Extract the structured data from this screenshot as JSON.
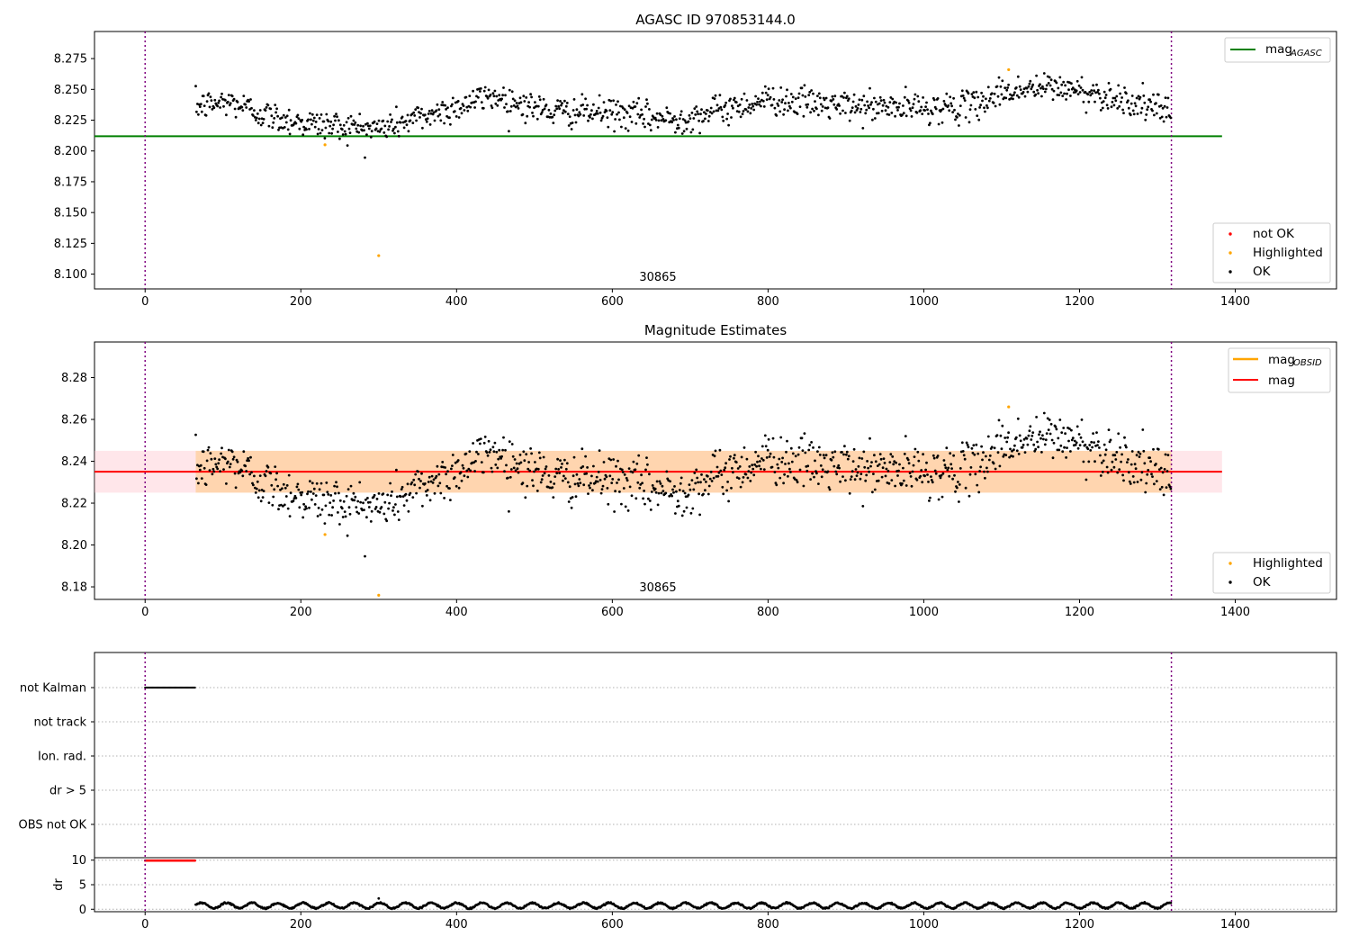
{
  "figure": {
    "panels": [
      {
        "id": "agasc",
        "title": "AGASC ID 970853144.0",
        "annotation": "30865"
      },
      {
        "id": "estimates",
        "title": "Magnitude Estimates",
        "annotation": "30865"
      },
      {
        "id": "flags",
        "title": ""
      }
    ]
  },
  "chart_data": [
    {
      "type": "scatter",
      "title": "AGASC ID 970853144.0",
      "xlabel": "",
      "ylabel": "",
      "xlim": [
        -65,
        1530
      ],
      "ylim": [
        8.088,
        8.297
      ],
      "x_ticks": [
        "0",
        "200",
        "400",
        "600",
        "800",
        "1000",
        "1200",
        "1400"
      ],
      "y_ticks": [
        "8.100",
        "8.125",
        "8.150",
        "8.175",
        "8.200",
        "8.225",
        "8.250",
        "8.275"
      ],
      "x_range_points": [
        65,
        1318
      ],
      "vlines": [
        0,
        1318
      ],
      "hlines": [
        {
          "name_main": "mag",
          "name_sub": "AGASC",
          "y": 8.212,
          "x_range": [
            -65,
            1383
          ],
          "color": "#008000"
        }
      ],
      "series": [
        {
          "name": "not OK",
          "color": "#ff0000",
          "points": []
        },
        {
          "name": "Highlighted",
          "color": "#ffa500",
          "points": [
            [
              231,
              8.205
            ],
            [
              300,
              8.115
            ],
            [
              1109,
              8.266
            ]
          ]
        },
        {
          "name": "OK",
          "color": "#000000",
          "trend": [
            [
              65,
              8.236
            ],
            [
              110,
              8.24
            ],
            [
              160,
              8.228
            ],
            [
              215,
              8.222
            ],
            [
              300,
              8.218
            ],
            [
              380,
              8.232
            ],
            [
              445,
              8.245
            ],
            [
              520,
              8.232
            ],
            [
              600,
              8.231
            ],
            [
              680,
              8.225
            ],
            [
              800,
              8.242
            ],
            [
              900,
              8.236
            ],
            [
              1000,
              8.235
            ],
            [
              1060,
              8.236
            ],
            [
              1100,
              8.248
            ],
            [
              1170,
              8.252
            ],
            [
              1250,
              8.243
            ],
            [
              1318,
              8.23
            ]
          ],
          "scatter": 0.006
        }
      ],
      "legend": [
        {
          "position": "upper-right",
          "entries": [
            "mag_AGASC"
          ]
        },
        {
          "position": "lower-right",
          "entries": [
            "not OK",
            "Highlighted",
            "OK"
          ]
        }
      ],
      "annotation": {
        "text": "30865",
        "x": 659
      }
    },
    {
      "type": "scatter",
      "title": "Magnitude Estimates",
      "xlabel": "",
      "ylabel": "",
      "xlim": [
        -65,
        1530
      ],
      "ylim": [
        8.174,
        8.297
      ],
      "x_ticks": [
        "0",
        "200",
        "400",
        "600",
        "800",
        "1000",
        "1200",
        "1400"
      ],
      "y_ticks": [
        "8.18",
        "8.20",
        "8.22",
        "8.24",
        "8.26",
        "8.28"
      ],
      "vlines": [
        0,
        1318
      ],
      "bands": [
        {
          "y": [
            8.225,
            8.245
          ],
          "x_range": [
            -65,
            1383
          ],
          "color": "#ffc0cb",
          "opacity": 0.4
        },
        {
          "y": [
            8.225,
            8.245
          ],
          "x_range": [
            65,
            1318
          ],
          "color": "#ffa500",
          "opacity": 0.25
        }
      ],
      "hlines": [
        {
          "name_main": "mag",
          "name_sub": "",
          "y": 8.235,
          "x_range": [
            -65,
            1383
          ],
          "color": "#ff0000"
        }
      ],
      "series": [
        {
          "name": "Highlighted",
          "color": "#ffa500",
          "points": [
            [
              231,
              8.205
            ],
            [
              300,
              8.176
            ],
            [
              1109,
              8.266
            ]
          ]
        },
        {
          "name": "OK",
          "color": "#000000",
          "trend": [
            [
              65,
              8.236
            ],
            [
              110,
              8.24
            ],
            [
              160,
              8.228
            ],
            [
              215,
              8.222
            ],
            [
              300,
              8.218
            ],
            [
              380,
              8.232
            ],
            [
              445,
              8.245
            ],
            [
              520,
              8.232
            ],
            [
              600,
              8.231
            ],
            [
              680,
              8.225
            ],
            [
              800,
              8.242
            ],
            [
              900,
              8.236
            ],
            [
              1000,
              8.235
            ],
            [
              1060,
              8.236
            ],
            [
              1100,
              8.248
            ],
            [
              1170,
              8.252
            ],
            [
              1250,
              8.243
            ],
            [
              1318,
              8.23
            ]
          ],
          "scatter": 0.006
        }
      ],
      "legend": [
        {
          "position": "upper-right",
          "entries": [
            "mag_OBSID",
            "mag"
          ]
        },
        {
          "position": "lower-right",
          "entries": [
            "Highlighted",
            "OK"
          ]
        }
      ],
      "legend_labels": {
        "obsid_main": "mag",
        "obsid_sub": "OBSID",
        "mag": "mag"
      },
      "annotation": {
        "text": "30865",
        "x": 659
      }
    },
    {
      "type": "scatter",
      "title": "",
      "xlim": [
        -65,
        1530
      ],
      "x_ticks": [
        "0",
        "200",
        "400",
        "600",
        "800",
        "1000",
        "1200",
        "1400"
      ],
      "flag_labels": [
        "not Kalman",
        "not track",
        "Ion. rad.",
        "dr > 5",
        "OBS not OK"
      ],
      "flag_segments": [
        {
          "flag": "not Kalman",
          "x": [
            0,
            64
          ]
        }
      ],
      "dr_ylabel": "dr",
      "dr_ticks": [
        "10",
        "5",
        "0"
      ],
      "dr_ylim": [
        -0.5,
        10.5
      ],
      "dr_clipped": {
        "x": [
          0,
          64
        ],
        "value": 10,
        "color": "#ff0000"
      },
      "dr_series": {
        "x": [
          65,
          1318
        ],
        "range": [
          0.1,
          1.5
        ],
        "outlier": [
          300,
          2.2
        ]
      },
      "vlines": [
        0,
        1318
      ]
    }
  ],
  "colors": {
    "ok": "#000000",
    "not_ok": "#ff0000",
    "highlighted": "#ffa500",
    "agasc_line": "#008000",
    "mag_line": "#ff0000",
    "obsid_line": "#ffa500",
    "vline": "#800080",
    "grid": "#b0b0b0"
  }
}
